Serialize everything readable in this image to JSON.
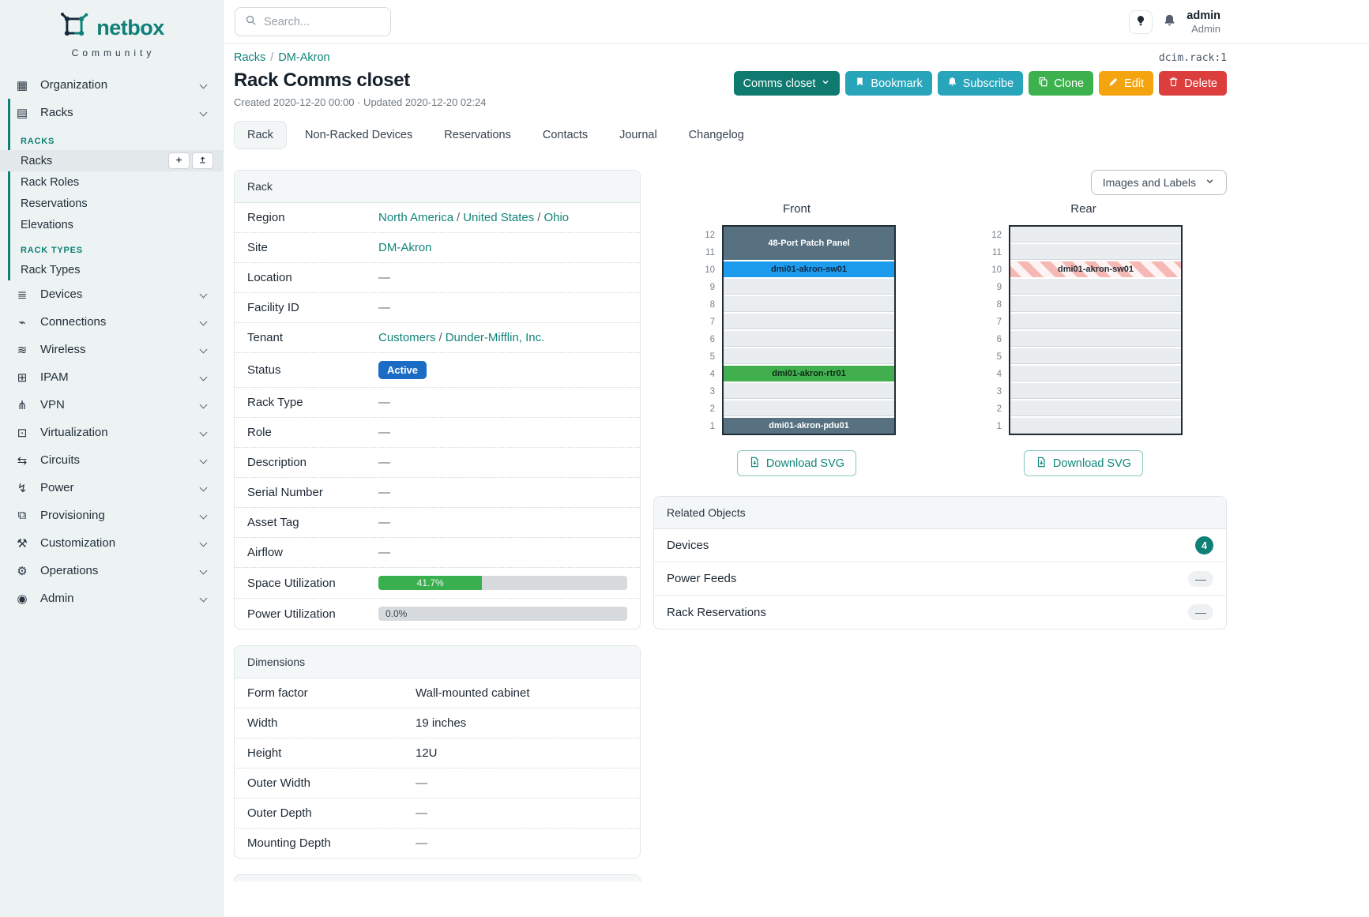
{
  "sidebar": {
    "logo": {
      "name": "netbox",
      "subtitle": "Community"
    },
    "items": [
      {
        "kind": "item",
        "icon": "building-icon",
        "label": "Organization"
      },
      {
        "kind": "item",
        "icon": "rack-icon",
        "label": "Racks",
        "expanded": true,
        "children": [
          {
            "kind": "section",
            "label": "RACKS"
          },
          {
            "kind": "link",
            "label": "Racks",
            "active": true,
            "actions": [
              {
                "icon": "plus-icon",
                "name": "add-rack-button"
              },
              {
                "icon": "upload-icon",
                "name": "import-racks-button"
              }
            ]
          },
          {
            "kind": "link",
            "label": "Rack Roles"
          },
          {
            "kind": "link",
            "label": "Reservations"
          },
          {
            "kind": "link",
            "label": "Elevations"
          },
          {
            "kind": "section",
            "label": "RACK TYPES"
          },
          {
            "kind": "link",
            "label": "Rack Types"
          }
        ]
      },
      {
        "kind": "item",
        "icon": "devices-icon",
        "label": "Devices"
      },
      {
        "kind": "item",
        "icon": "connections-icon",
        "label": "Connections"
      },
      {
        "kind": "item",
        "icon": "wifi-icon",
        "label": "Wireless"
      },
      {
        "kind": "item",
        "icon": "ipam-icon",
        "label": "IPAM"
      },
      {
        "kind": "item",
        "icon": "vpn-icon",
        "label": "VPN"
      },
      {
        "kind": "item",
        "icon": "virtualization-icon",
        "label": "Virtualization"
      },
      {
        "kind": "item",
        "icon": "circuits-icon",
        "label": "Circuits"
      },
      {
        "kind": "item",
        "icon": "power-icon",
        "label": "Power"
      },
      {
        "kind": "item",
        "icon": "provisioning-icon",
        "label": "Provisioning"
      },
      {
        "kind": "item",
        "icon": "customization-icon",
        "label": "Customization"
      },
      {
        "kind": "item",
        "icon": "operations-icon",
        "label": "Operations"
      },
      {
        "kind": "item",
        "icon": "admin-icon",
        "label": "Admin"
      }
    ]
  },
  "topbar": {
    "search_placeholder": "Search...",
    "user_name": "admin",
    "user_role": "Admin"
  },
  "header": {
    "breadcrumbs": [
      "Racks",
      "DM-Akron"
    ],
    "object_id": "dcim.rack:1",
    "title": "Rack Comms closet",
    "meta": "Created 2020-12-20 00:00 · Updated 2020-12-20 02:24",
    "actions": [
      {
        "label": "Comms closet",
        "style": "dark-teal",
        "trailing_icon": "chevron-down-icon",
        "name": "comms-closet-dropdown"
      },
      {
        "label": "Bookmark",
        "style": "cyan",
        "icon": "bookmark-icon",
        "name": "bookmark-button"
      },
      {
        "label": "Subscribe",
        "style": "cyan",
        "icon": "bell-icon",
        "name": "subscribe-button"
      },
      {
        "label": "Clone",
        "style": "green",
        "icon": "copy-icon",
        "name": "clone-button"
      },
      {
        "label": "Edit",
        "style": "amber",
        "icon": "pencil-icon",
        "name": "edit-button"
      },
      {
        "label": "Delete",
        "style": "red",
        "icon": "trash-icon",
        "name": "delete-button"
      }
    ]
  },
  "tabs": [
    {
      "label": "Rack",
      "active": true
    },
    {
      "label": "Non-Racked Devices"
    },
    {
      "label": "Reservations"
    },
    {
      "label": "Contacts"
    },
    {
      "label": "Journal"
    },
    {
      "label": "Changelog"
    }
  ],
  "rack_panel": {
    "title": "Rack",
    "rows": [
      {
        "label": "Region",
        "type": "links",
        "links": [
          "North America",
          "United States",
          "Ohio"
        ]
      },
      {
        "label": "Site",
        "type": "links",
        "links": [
          "DM-Akron"
        ]
      },
      {
        "label": "Location",
        "type": "empty"
      },
      {
        "label": "Facility ID",
        "type": "empty"
      },
      {
        "label": "Tenant",
        "type": "links",
        "links": [
          "Customers",
          "Dunder-Mifflin, Inc."
        ]
      },
      {
        "label": "Status",
        "type": "badge",
        "value": "Active",
        "color": "#1a6cc4"
      },
      {
        "label": "Rack Type",
        "type": "empty"
      },
      {
        "label": "Role",
        "type": "empty"
      },
      {
        "label": "Description",
        "type": "empty"
      },
      {
        "label": "Serial Number",
        "type": "empty"
      },
      {
        "label": "Asset Tag",
        "type": "empty"
      },
      {
        "label": "Airflow",
        "type": "empty"
      },
      {
        "label": "Space Utilization",
        "type": "progress",
        "percent": 41.7,
        "display": "41.7%",
        "color": "#3aaf4e"
      },
      {
        "label": "Power Utilization",
        "type": "progress",
        "percent": 0,
        "display": "0.0%",
        "color": "#d7dbde"
      }
    ]
  },
  "dimensions_panel": {
    "title": "Dimensions",
    "rows": [
      {
        "label": "Form factor",
        "value": "Wall-mounted cabinet"
      },
      {
        "label": "Width",
        "value": "19 inches"
      },
      {
        "label": "Height",
        "value": "12U"
      },
      {
        "label": "Outer Width",
        "value": "—"
      },
      {
        "label": "Outer Depth",
        "value": "—"
      },
      {
        "label": "Mounting Depth",
        "value": "—"
      }
    ]
  },
  "elevations": {
    "dropdown_label": "Images and Labels",
    "download_label": "Download SVG",
    "unit_numbers": [
      12,
      11,
      10,
      9,
      8,
      7,
      6,
      5,
      4,
      3,
      2,
      1
    ],
    "front": {
      "title": "Front",
      "slots": [
        {
          "units": 2,
          "label": "48-Port Patch Panel",
          "style": "slate"
        },
        {
          "units": 1,
          "label": "dmi01-akron-sw01",
          "style": "blue"
        },
        {
          "units": 1
        },
        {
          "units": 1
        },
        {
          "units": 1
        },
        {
          "units": 1
        },
        {
          "units": 1
        },
        {
          "units": 1,
          "label": "dmi01-akron-rtr01",
          "style": "green"
        },
        {
          "units": 1
        },
        {
          "units": 1
        },
        {
          "units": 1,
          "label": "dmi01-akron-pdu01",
          "style": "slate"
        }
      ]
    },
    "rear": {
      "title": "Rear",
      "slots": [
        {
          "units": 1
        },
        {
          "units": 1
        },
        {
          "units": 1,
          "label": "dmi01-akron-sw01",
          "style": "striped"
        },
        {
          "units": 1
        },
        {
          "units": 1
        },
        {
          "units": 1
        },
        {
          "units": 1
        },
        {
          "units": 1
        },
        {
          "units": 1
        },
        {
          "units": 1
        },
        {
          "units": 1
        },
        {
          "units": 1
        }
      ]
    }
  },
  "related_objects": {
    "title": "Related Objects",
    "rows": [
      {
        "label": "Devices",
        "count": "4"
      },
      {
        "label": "Power Feeds",
        "count": "—"
      },
      {
        "label": "Rack Reservations",
        "count": "—"
      }
    ]
  },
  "colors": {
    "brand_teal": "#0e8077",
    "link_teal": "#11847a",
    "status_blue": "#1a6cc4",
    "utilization_green": "#3aaf4e",
    "count_badge_teal": "#0e8077"
  }
}
